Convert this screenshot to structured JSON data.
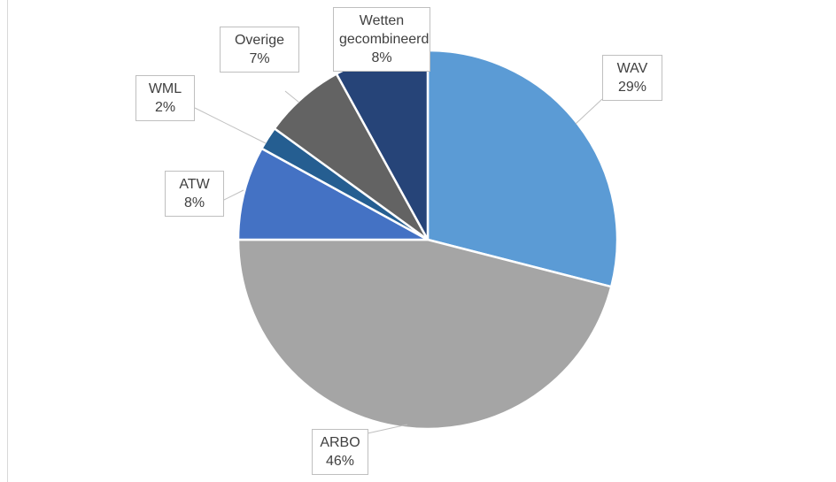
{
  "chart_data": {
    "type": "pie",
    "categories": [
      "WAV",
      "ARBO",
      "ATW",
      "WML",
      "Overige",
      "Wetten gecombineerd"
    ],
    "values": [
      29,
      46,
      8,
      2,
      7,
      8
    ],
    "value_labels": [
      "29%",
      "46%",
      "8%",
      "2%",
      "7%",
      "8%"
    ],
    "colors": [
      "#5b9bd5",
      "#a5a5a5",
      "#4472c4",
      "#255e91",
      "#636363",
      "#264478"
    ]
  }
}
